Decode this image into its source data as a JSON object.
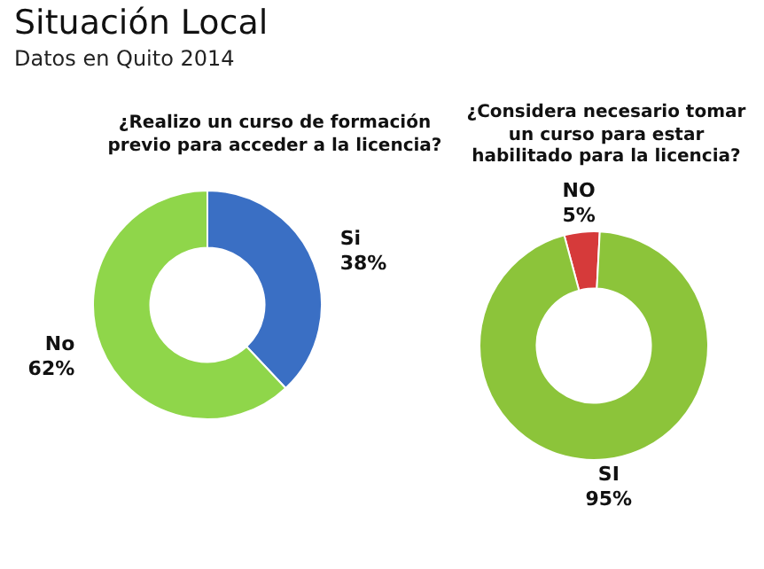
{
  "chart_data": [
    {
      "type": "other",
      "title": "Situación Local",
      "subtitle": "Datos en Quito 2014"
    },
    {
      "type": "donut",
      "title": "¿Realizo un curso de formación previo para acceder a la licencia?",
      "categories": [
        "Si",
        "No"
      ],
      "values": [
        38,
        62
      ],
      "colors": [
        "#3a6fc4",
        "#8fd64a"
      ],
      "value_labels": [
        "38%",
        "62%"
      ]
    },
    {
      "type": "donut",
      "title": "¿Considera necesario tomar un curso para estar habilitado para la licencia?",
      "categories": [
        "NO",
        "SI"
      ],
      "values": [
        5,
        95
      ],
      "colors": [
        "#d63a3a",
        "#8cc43a"
      ],
      "value_labels": [
        "5%",
        "95%"
      ]
    }
  ]
}
